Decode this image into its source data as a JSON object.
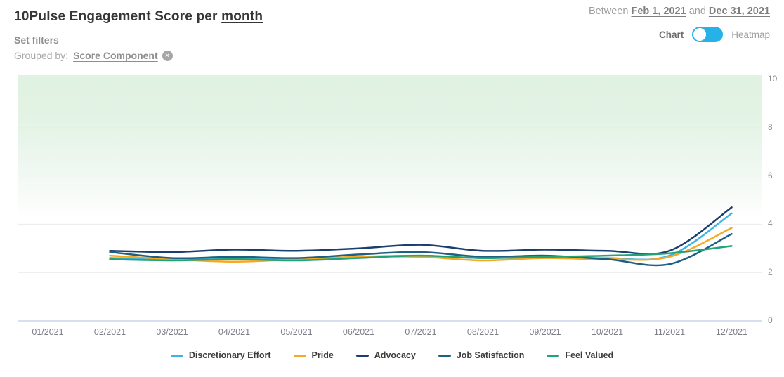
{
  "header": {
    "title_prefix": "10Pulse Engagement Score per ",
    "title_period": "month",
    "set_filters_label": "Set filters",
    "grouped_by_label": "Grouped by:",
    "grouped_by_value": "Score Component",
    "remove_icon_glyph": "✕",
    "between_label": "Between ",
    "and_label": " and ",
    "date_start": "Feb 1, 2021",
    "date_end": "Dec 31, 2021",
    "toggle_left_label": "Chart",
    "toggle_right_label": "Heatmap",
    "toggle_state": "chart",
    "toggle_color": "#27b1e9"
  },
  "chart_data": {
    "type": "line",
    "title": "10Pulse Engagement Score per month",
    "x": [
      "01/2021",
      "02/2021",
      "03/2021",
      "04/2021",
      "05/2021",
      "06/2021",
      "07/2021",
      "08/2021",
      "09/2021",
      "10/2021",
      "11/2021",
      "12/2021"
    ],
    "ylim": [
      0,
      10
    ],
    "yticks": [
      0,
      2,
      4,
      6,
      8,
      10
    ],
    "grid": true,
    "legend_position": "bottom",
    "plot_background": "green-to-white vertical gradient",
    "gridline_color": "#eaeaef",
    "zeroline_color": "#d8e0f0",
    "series": [
      {
        "name": "Discretionary Effort",
        "color": "#3cb4e6",
        "start_index": 1,
        "values": [
          2.6,
          2.55,
          2.6,
          2.55,
          2.65,
          2.7,
          2.6,
          2.65,
          2.6,
          2.7,
          4.45
        ]
      },
      {
        "name": "Pride",
        "color": "#f7a823",
        "start_index": 1,
        "values": [
          2.7,
          2.55,
          2.45,
          2.55,
          2.65,
          2.65,
          2.5,
          2.6,
          2.55,
          2.65,
          3.85
        ]
      },
      {
        "name": "Advocacy",
        "color": "#1c3e6e",
        "start_index": 1,
        "values": [
          2.9,
          2.85,
          2.95,
          2.9,
          3.0,
          3.15,
          2.9,
          2.95,
          2.9,
          2.9,
          4.7
        ]
      },
      {
        "name": "Job Satisfaction",
        "color": "#1f5f82",
        "start_index": 1,
        "values": [
          2.85,
          2.6,
          2.65,
          2.6,
          2.75,
          2.85,
          2.65,
          2.7,
          2.55,
          2.35,
          3.6
        ]
      },
      {
        "name": "Feel Valued",
        "color": "#21a377",
        "start_index": 1,
        "values": [
          2.55,
          2.5,
          2.55,
          2.5,
          2.6,
          2.7,
          2.6,
          2.65,
          2.7,
          2.8,
          3.1
        ]
      }
    ]
  }
}
